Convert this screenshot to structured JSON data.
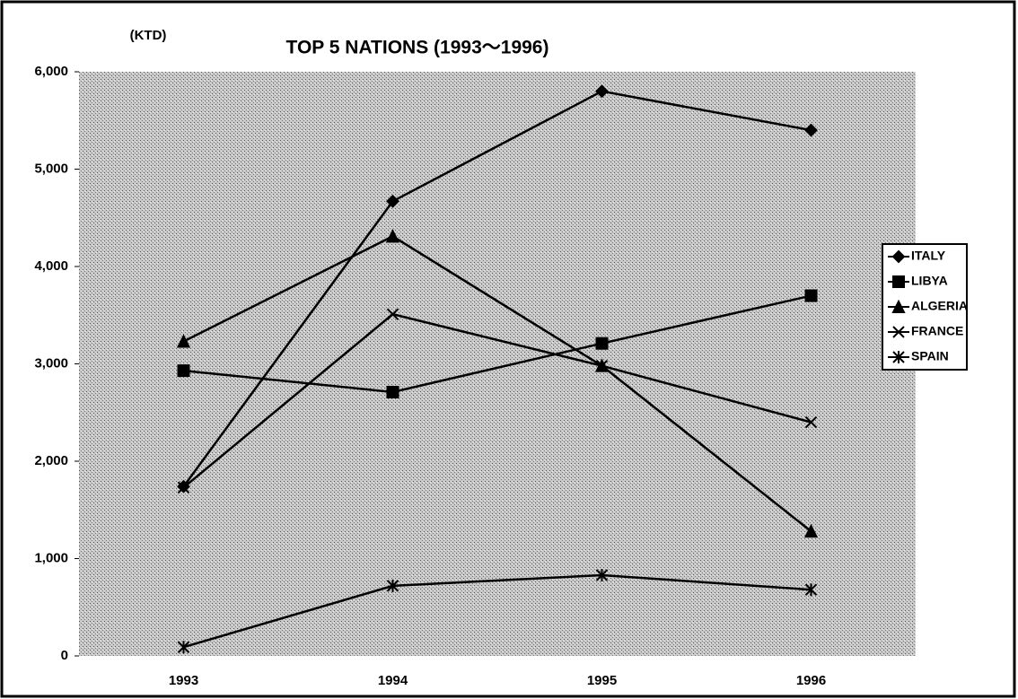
{
  "chart_data": {
    "type": "line",
    "title": "TOP 5 NATIONS (1993～1996)",
    "y_label": "(KTD)",
    "categories": [
      "1993",
      "1994",
      "1995",
      "1996"
    ],
    "series": [
      {
        "name": "ITALY",
        "color": "#000000",
        "marker": "diamond",
        "values": [
          1740,
          4670,
          5800,
          5400
        ]
      },
      {
        "name": "LIBYA",
        "color": "#000000",
        "marker": "square",
        "values": [
          2930,
          2710,
          3210,
          3700
        ]
      },
      {
        "name": "ALGERIA",
        "color": "#000000",
        "marker": "triangle",
        "values": [
          3230,
          4310,
          2980,
          1280
        ]
      },
      {
        "name": "FRANCE",
        "color": "#000000",
        "marker": "x",
        "values": [
          1730,
          3510,
          2980,
          2400
        ]
      },
      {
        "name": "SPAIN",
        "color": "#000000",
        "marker": "star",
        "values": [
          90,
          720,
          830,
          680
        ]
      }
    ],
    "ylim": [
      0,
      6000
    ],
    "yticks": [
      0,
      {
        "value": 1000,
        "label": "1,000"
      },
      {
        "value": 2000,
        "label": "2,000"
      },
      {
        "value": 3000,
        "label": "3,000"
      },
      {
        "value": 4000,
        "label": "4,000"
      },
      {
        "value": 5000,
        "label": "5,000"
      },
      {
        "value": 6000,
        "label": "6,000"
      }
    ],
    "legend": "right"
  }
}
